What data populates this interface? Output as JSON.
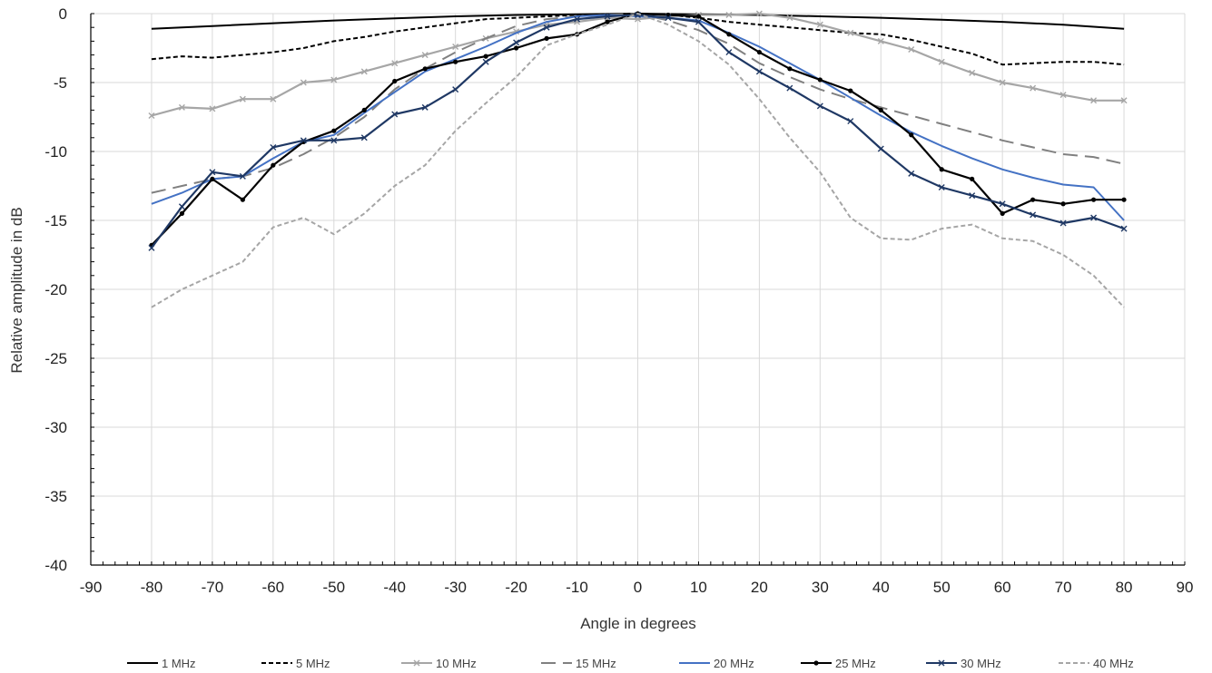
{
  "chart_data": {
    "type": "line",
    "xlabel": "Angle in degrees",
    "ylabel": "Relative amplitude in dB",
    "xlim": [
      -90,
      90
    ],
    "ylim": [
      -40,
      0
    ],
    "xticks": [
      -90,
      -80,
      -70,
      -60,
      -50,
      -40,
      -30,
      -20,
      -10,
      0,
      10,
      20,
      30,
      40,
      50,
      60,
      70,
      80,
      90
    ],
    "yticks": [
      0,
      -5,
      -10,
      -15,
      -20,
      -25,
      -30,
      -35,
      -40
    ],
    "grid": true,
    "legend_position": "bottom",
    "series": [
      {
        "name": "1 MHz",
        "color": "#000000",
        "style": "solid",
        "marker": "none",
        "x": [
          -80,
          -70,
          -60,
          -50,
          -40,
          -30,
          -20,
          -10,
          0,
          10,
          20,
          30,
          40,
          50,
          60,
          70,
          80
        ],
        "y": [
          -1.1,
          -0.9,
          -0.7,
          -0.5,
          -0.35,
          -0.2,
          -0.1,
          -0.05,
          0,
          -0.05,
          -0.1,
          -0.2,
          -0.3,
          -0.45,
          -0.6,
          -0.8,
          -1.1
        ]
      },
      {
        "name": "5 MHz",
        "color": "#000000",
        "style": "dash",
        "marker": "none",
        "x": [
          -80,
          -75,
          -70,
          -65,
          -60,
          -55,
          -50,
          -45,
          -40,
          -35,
          -30,
          -25,
          -20,
          -15,
          -10,
          -5,
          0,
          5,
          10,
          15,
          20,
          25,
          30,
          35,
          40,
          45,
          50,
          55,
          60,
          65,
          70,
          75,
          80
        ],
        "y": [
          -3.3,
          -3.1,
          -3.2,
          -3.0,
          -2.8,
          -2.5,
          -2.0,
          -1.7,
          -1.3,
          -1.0,
          -0.7,
          -0.4,
          -0.3,
          -0.2,
          -0.1,
          -0.05,
          0,
          -0.1,
          -0.3,
          -0.6,
          -0.8,
          -1.0,
          -1.2,
          -1.4,
          -1.5,
          -1.9,
          -2.4,
          -2.9,
          -3.7,
          -3.6,
          -3.5,
          -3.5,
          -3.7
        ]
      },
      {
        "name": "10 MHz",
        "color": "#a6a6a6",
        "style": "solid",
        "marker": "x",
        "x": [
          -80,
          -75,
          -70,
          -65,
          -60,
          -55,
          -50,
          -45,
          -40,
          -35,
          -30,
          -25,
          -20,
          -15,
          -10,
          -5,
          0,
          5,
          10,
          15,
          20,
          25,
          30,
          35,
          40,
          45,
          50,
          55,
          60,
          65,
          70,
          75,
          80
        ],
        "y": [
          -7.4,
          -6.8,
          -6.9,
          -6.2,
          -6.2,
          -5.0,
          -4.8,
          -4.2,
          -3.6,
          -3.0,
          -2.4,
          -1.8,
          -1.3,
          -0.8,
          -0.6,
          -0.3,
          -0.4,
          -0.2,
          -0.1,
          -0.1,
          0,
          -0.3,
          -0.8,
          -1.4,
          -2.0,
          -2.6,
          -3.5,
          -4.3,
          -5.0,
          -5.4,
          -5.9,
          -6.3,
          -6.3
        ]
      },
      {
        "name": "15 MHz",
        "color": "#808080",
        "style": "longdash",
        "marker": "none",
        "x": [
          -80,
          -75,
          -70,
          -65,
          -60,
          -55,
          -50,
          -45,
          -40,
          -35,
          -30,
          -25,
          -20,
          -15,
          -10,
          -5,
          0,
          5,
          10,
          15,
          20,
          25,
          30,
          35,
          40,
          45,
          50,
          55,
          60,
          65,
          70,
          75,
          80
        ],
        "y": [
          -13.0,
          -12.5,
          -12.0,
          -11.8,
          -11.2,
          -10.2,
          -9.0,
          -7.5,
          -5.5,
          -4.0,
          -2.8,
          -1.8,
          -0.9,
          -0.4,
          -0.2,
          -0.1,
          0,
          -0.5,
          -1.2,
          -2.2,
          -3.6,
          -4.6,
          -5.5,
          -6.2,
          -6.8,
          -7.4,
          -8.0,
          -8.6,
          -9.2,
          -9.7,
          -10.2,
          -10.4,
          -10.9
        ]
      },
      {
        "name": "20 MHz",
        "color": "#4472c4",
        "style": "solid",
        "marker": "none",
        "x": [
          -80,
          -75,
          -70,
          -65,
          -60,
          -55,
          -50,
          -45,
          -40,
          -35,
          -30,
          -25,
          -20,
          -15,
          -10,
          -5,
          0,
          5,
          10,
          15,
          20,
          25,
          30,
          35,
          40,
          45,
          50,
          55,
          60,
          65,
          70,
          75,
          80
        ],
        "y": [
          -13.8,
          -13.0,
          -12.0,
          -11.8,
          -10.5,
          -9.3,
          -8.8,
          -7.2,
          -5.7,
          -4.2,
          -3.3,
          -2.4,
          -1.4,
          -0.6,
          -0.2,
          -0.1,
          -0.2,
          -0.3,
          -0.5,
          -1.4,
          -2.4,
          -3.6,
          -4.8,
          -6.1,
          -7.4,
          -8.6,
          -9.6,
          -10.5,
          -11.3,
          -11.9,
          -12.4,
          -12.6,
          -15.0
        ]
      },
      {
        "name": "25 MHz",
        "color": "#000000",
        "style": "solid",
        "marker": "dot",
        "x": [
          -80,
          -75,
          -70,
          -65,
          -60,
          -55,
          -50,
          -45,
          -40,
          -35,
          -30,
          -25,
          -20,
          -15,
          -10,
          -5,
          0,
          5,
          10,
          15,
          20,
          25,
          30,
          35,
          40,
          45,
          50,
          55,
          60,
          65,
          70,
          75,
          80
        ],
        "y": [
          -16.8,
          -14.5,
          -12.0,
          -13.5,
          -11.0,
          -9.3,
          -8.5,
          -7.0,
          -4.9,
          -4.0,
          -3.5,
          -3.1,
          -2.5,
          -1.8,
          -1.5,
          -0.6,
          0,
          -0.1,
          -0.2,
          -1.5,
          -2.8,
          -4.0,
          -4.8,
          -5.6,
          -7.0,
          -8.8,
          -11.3,
          -12.0,
          -14.5,
          -13.5,
          -13.8,
          -13.5,
          -13.5
        ]
      },
      {
        "name": "30 MHz",
        "color": "#1f3864",
        "style": "solid",
        "marker": "x",
        "x": [
          -80,
          -75,
          -70,
          -65,
          -60,
          -55,
          -50,
          -45,
          -40,
          -35,
          -30,
          -25,
          -20,
          -15,
          -10,
          -5,
          0,
          5,
          10,
          15,
          20,
          25,
          30,
          35,
          40,
          45,
          50,
          55,
          60,
          65,
          70,
          75,
          80
        ],
        "y": [
          -17.0,
          -14.0,
          -11.5,
          -11.8,
          -9.7,
          -9.2,
          -9.2,
          -9.0,
          -7.3,
          -6.8,
          -5.5,
          -3.5,
          -2.1,
          -1.0,
          -0.4,
          -0.2,
          -0.1,
          -0.3,
          -0.6,
          -2.8,
          -4.2,
          -5.4,
          -6.7,
          -7.8,
          -9.8,
          -11.6,
          -12.6,
          -13.2,
          -13.8,
          -14.6,
          -15.2,
          -14.8,
          -15.6
        ]
      },
      {
        "name": "40 MHz",
        "color": "#a6a6a6",
        "style": "dash",
        "marker": "none",
        "x": [
          -80,
          -75,
          -70,
          -65,
          -60,
          -55,
          -50,
          -45,
          -40,
          -35,
          -30,
          -25,
          -20,
          -15,
          -10,
          -5,
          0,
          5,
          10,
          15,
          20,
          25,
          30,
          35,
          40,
          45,
          50,
          55,
          60,
          65,
          70,
          75,
          80
        ],
        "y": [
          -21.3,
          -20.0,
          -19.0,
          -18.0,
          -15.5,
          -14.8,
          -16.0,
          -14.5,
          -12.5,
          -11.0,
          -8.5,
          -6.5,
          -4.6,
          -2.3,
          -1.5,
          -0.8,
          0,
          -0.8,
          -2.0,
          -3.7,
          -6.2,
          -9.0,
          -11.5,
          -14.8,
          -16.3,
          -16.4,
          -15.6,
          -15.3,
          -16.3,
          -16.5,
          -17.5,
          -19.0,
          -21.3
        ]
      }
    ]
  }
}
